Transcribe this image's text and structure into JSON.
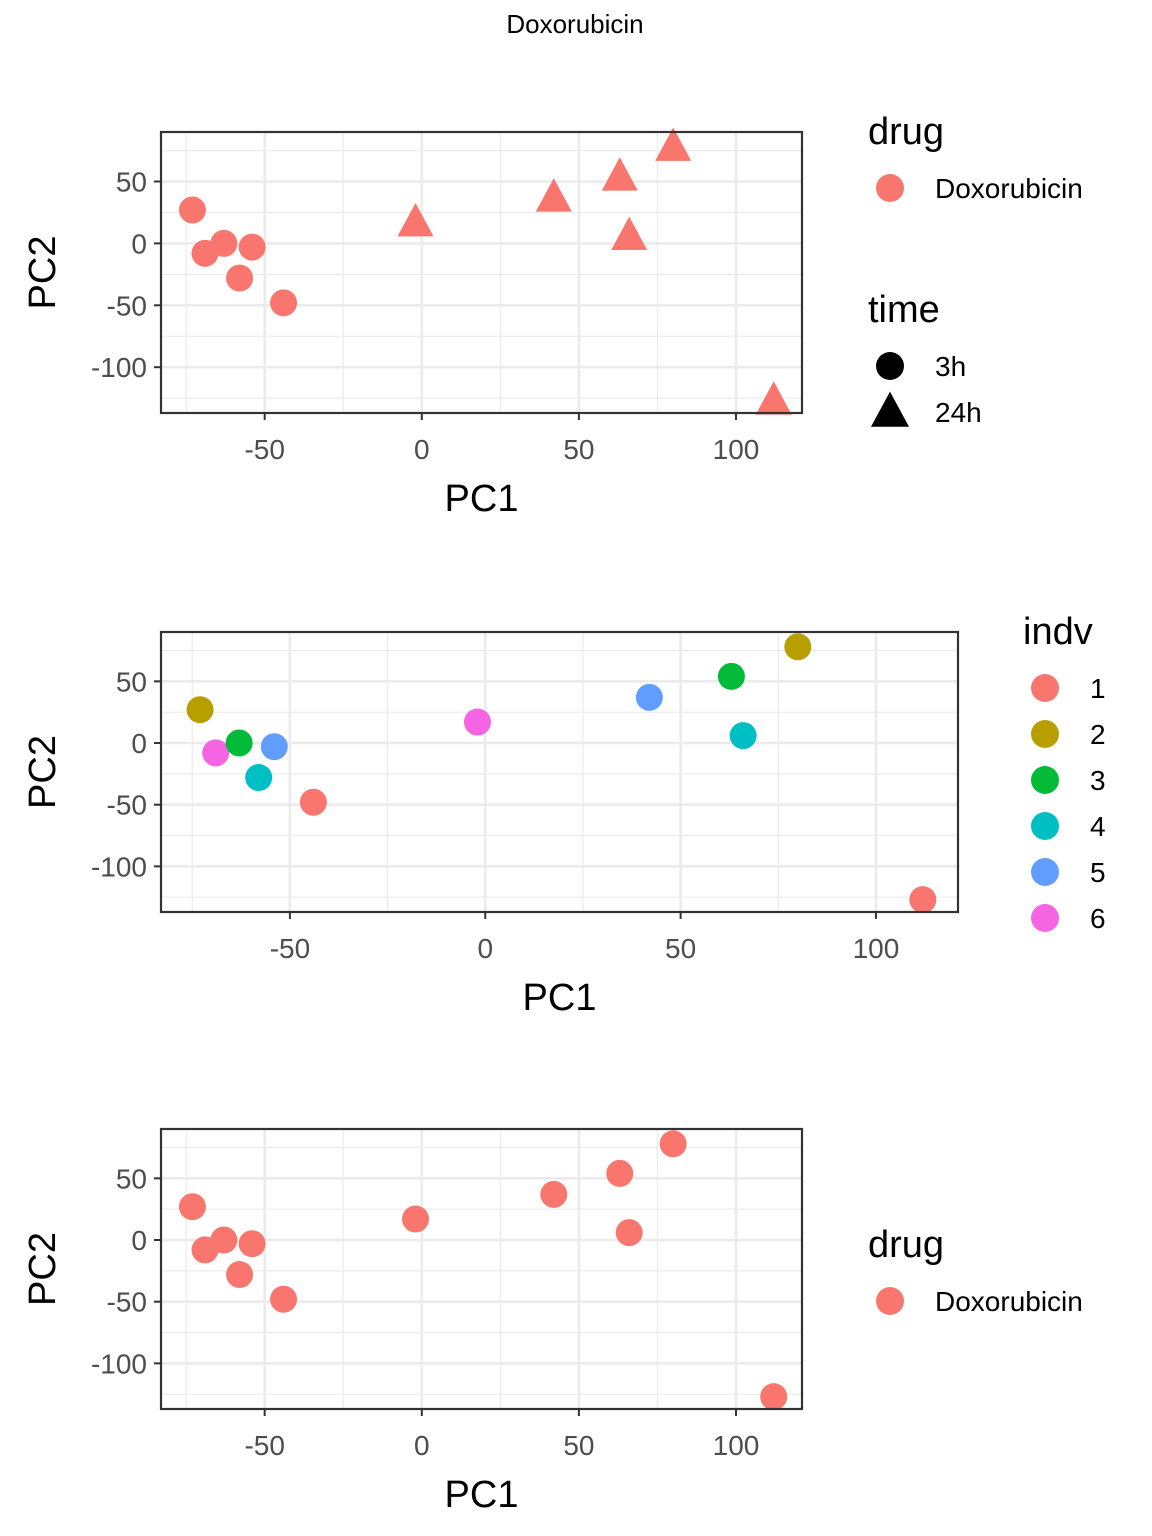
{
  "figure_title": "Doxorubicin",
  "colors": {
    "drug_Doxorubicin": "#F8766D",
    "indv_1": "#F8766D",
    "indv_2": "#B79F00",
    "indv_3": "#00BA38",
    "indv_4": "#00BFC4",
    "indv_5": "#619CFF",
    "indv_6": "#F564E3",
    "grid": "#EBEBEB",
    "panel_border": "#333333",
    "tick_text": "#4D4D4D"
  },
  "chart_data": [
    {
      "type": "scatter",
      "xlabel": "PC1",
      "ylabel": "PC2",
      "xlim": [
        -83,
        121
      ],
      "ylim": [
        -137,
        90
      ],
      "xticks": [
        -50,
        0,
        50,
        100
      ],
      "yticks": [
        50,
        0,
        -50,
        -100
      ],
      "xtick_labels": [
        "-50",
        "0",
        "50",
        "100"
      ],
      "ytick_labels": [
        "50",
        "0",
        "-50",
        "-100"
      ],
      "grid": true,
      "legend_position": "right",
      "color_by": "drug",
      "shape_by": "time",
      "legends": [
        {
          "title": "drug",
          "kind": "color",
          "entries": [
            {
              "label": "Doxorubicin",
              "color": "#F8766D"
            }
          ]
        },
        {
          "title": "time",
          "kind": "shape",
          "entries": [
            {
              "label": "3h",
              "shape": "circle"
            },
            {
              "label": "24h",
              "shape": "triangle"
            }
          ]
        }
      ],
      "points": [
        {
          "x": -73,
          "y": 27,
          "drug": "Doxorubicin",
          "time": "3h"
        },
        {
          "x": -69,
          "y": -8,
          "drug": "Doxorubicin",
          "time": "3h"
        },
        {
          "x": -63,
          "y": 0,
          "drug": "Doxorubicin",
          "time": "3h"
        },
        {
          "x": -58,
          "y": -28,
          "drug": "Doxorubicin",
          "time": "3h"
        },
        {
          "x": -54,
          "y": -3,
          "drug": "Doxorubicin",
          "time": "3h"
        },
        {
          "x": -44,
          "y": -48,
          "drug": "Doxorubicin",
          "time": "3h"
        },
        {
          "x": -2,
          "y": 17,
          "drug": "Doxorubicin",
          "time": "24h"
        },
        {
          "x": 42,
          "y": 37,
          "drug": "Doxorubicin",
          "time": "24h"
        },
        {
          "x": 63,
          "y": 54,
          "drug": "Doxorubicin",
          "time": "24h"
        },
        {
          "x": 66,
          "y": 6,
          "drug": "Doxorubicin",
          "time": "24h"
        },
        {
          "x": 80,
          "y": 78,
          "drug": "Doxorubicin",
          "time": "24h"
        },
        {
          "x": 112,
          "y": -127,
          "drug": "Doxorubicin",
          "time": "24h"
        }
      ]
    },
    {
      "type": "scatter",
      "xlabel": "PC1",
      "ylabel": "PC2",
      "xlim": [
        -83,
        121
      ],
      "ylim": [
        -137,
        90
      ],
      "xticks": [
        -50,
        0,
        50,
        100
      ],
      "yticks": [
        50,
        0,
        -50,
        -100
      ],
      "xtick_labels": [
        "-50",
        "0",
        "50",
        "100"
      ],
      "ytick_labels": [
        "50",
        "0",
        "-50",
        "-100"
      ],
      "grid": true,
      "legend_position": "right",
      "color_by": "indv",
      "legends": [
        {
          "title": "indv",
          "kind": "color",
          "entries": [
            {
              "label": "1",
              "color": "#F8766D"
            },
            {
              "label": "2",
              "color": "#B79F00"
            },
            {
              "label": "3",
              "color": "#00BA38"
            },
            {
              "label": "4",
              "color": "#00BFC4"
            },
            {
              "label": "5",
              "color": "#619CFF"
            },
            {
              "label": "6",
              "color": "#F564E3"
            }
          ]
        }
      ],
      "points": [
        {
          "x": -73,
          "y": 27,
          "indv": "2"
        },
        {
          "x": -69,
          "y": -8,
          "indv": "6"
        },
        {
          "x": -63,
          "y": 0,
          "indv": "3"
        },
        {
          "x": -58,
          "y": -28,
          "indv": "4"
        },
        {
          "x": -54,
          "y": -3,
          "indv": "5"
        },
        {
          "x": -44,
          "y": -48,
          "indv": "1"
        },
        {
          "x": -2,
          "y": 17,
          "indv": "6"
        },
        {
          "x": 42,
          "y": 37,
          "indv": "5"
        },
        {
          "x": 63,
          "y": 54,
          "indv": "3"
        },
        {
          "x": 66,
          "y": 6,
          "indv": "4"
        },
        {
          "x": 80,
          "y": 78,
          "indv": "2"
        },
        {
          "x": 112,
          "y": -127,
          "indv": "1"
        }
      ]
    },
    {
      "type": "scatter",
      "xlabel": "PC1",
      "ylabel": "PC2",
      "xlim": [
        -83,
        121
      ],
      "ylim": [
        -137,
        90
      ],
      "xticks": [
        -50,
        0,
        50,
        100
      ],
      "yticks": [
        50,
        0,
        -50,
        -100
      ],
      "xtick_labels": [
        "-50",
        "0",
        "50",
        "100"
      ],
      "ytick_labels": [
        "50",
        "0",
        "-50",
        "-100"
      ],
      "grid": true,
      "legend_position": "right",
      "color_by": "drug",
      "legends": [
        {
          "title": "drug",
          "kind": "color",
          "entries": [
            {
              "label": "Doxorubicin",
              "color": "#F8766D"
            }
          ]
        }
      ],
      "points": [
        {
          "x": -73,
          "y": 27,
          "drug": "Doxorubicin"
        },
        {
          "x": -69,
          "y": -8,
          "drug": "Doxorubicin"
        },
        {
          "x": -63,
          "y": 0,
          "drug": "Doxorubicin"
        },
        {
          "x": -58,
          "y": -28,
          "drug": "Doxorubicin"
        },
        {
          "x": -54,
          "y": -3,
          "drug": "Doxorubicin"
        },
        {
          "x": -44,
          "y": -48,
          "drug": "Doxorubicin"
        },
        {
          "x": -2,
          "y": 17,
          "drug": "Doxorubicin"
        },
        {
          "x": 42,
          "y": 37,
          "drug": "Doxorubicin"
        },
        {
          "x": 63,
          "y": 54,
          "drug": "Doxorubicin"
        },
        {
          "x": 66,
          "y": 6,
          "drug": "Doxorubicin"
        },
        {
          "x": 80,
          "y": 78,
          "drug": "Doxorubicin"
        },
        {
          "x": 112,
          "y": -127,
          "drug": "Doxorubicin"
        }
      ]
    }
  ]
}
